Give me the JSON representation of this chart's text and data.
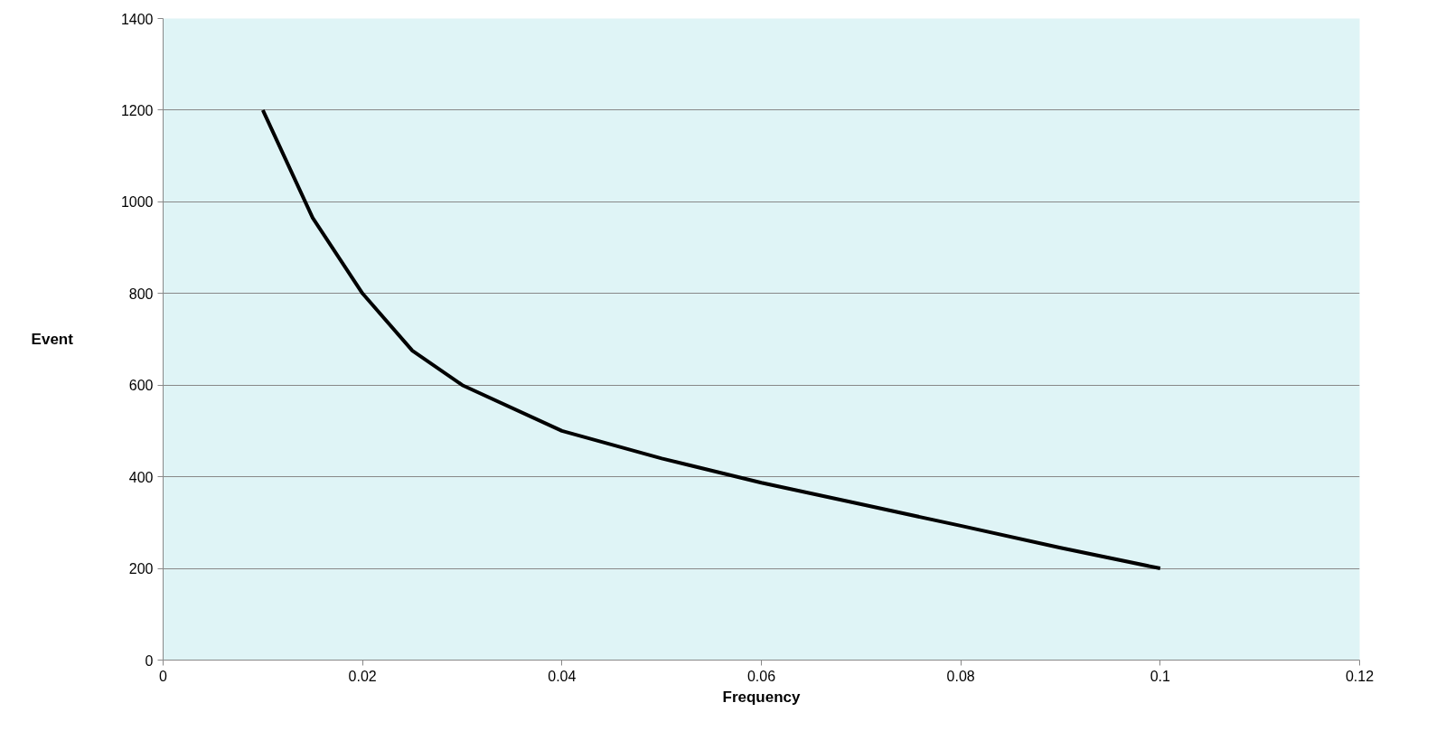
{
  "chart_data": {
    "type": "line",
    "xlabel": "Frequency",
    "ylabel": "Event",
    "x": [
      0.01,
      0.015,
      0.02,
      0.025,
      0.03,
      0.04,
      0.05,
      0.06,
      0.07,
      0.08,
      0.09,
      0.1
    ],
    "series": [
      {
        "color": "#000000",
        "values": [
          1200,
          965,
          800,
          675,
          600,
          500,
          440,
          387,
          340,
          293,
          245,
          200
        ]
      }
    ],
    "xlim": [
      0,
      0.12
    ],
    "xticks": [
      0,
      0.02,
      0.04,
      0.06,
      0.08,
      0.1,
      0.12
    ],
    "ylim": [
      0,
      1400
    ],
    "yticks": [
      0,
      200,
      400,
      600,
      800,
      1000,
      1200,
      1400
    ],
    "grid": "y",
    "marker": "none",
    "line_style": "solid"
  }
}
